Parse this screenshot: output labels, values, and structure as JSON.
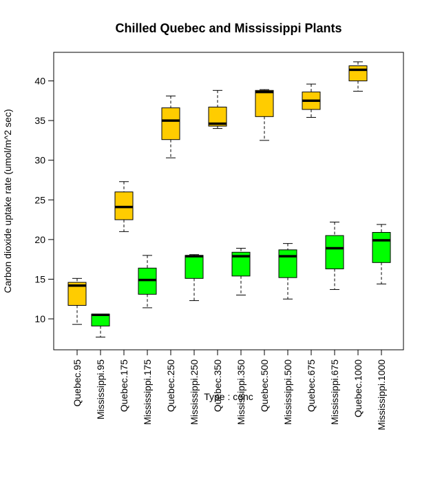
{
  "chart_data": {
    "type": "boxplot",
    "title": "Chilled Quebec and Mississippi Plants",
    "xlabel": "Type : conc",
    "ylabel": "Carbon dioxide uptake rate (umol/m^2 sec)",
    "ylim": [
      6.1,
      43.6
    ],
    "yticks": [
      10,
      15,
      20,
      25,
      30,
      35,
      40
    ],
    "grid": false,
    "legend": "none",
    "colors": {
      "Quebec": "#FFCC00",
      "Mississippi": "#00FF00"
    },
    "categories": [
      "Quebec.95",
      "Mississippi.95",
      "Quebec.175",
      "Mississippi.175",
      "Quebec.250",
      "Mississippi.250",
      "Quebec.350",
      "Mississippi.350",
      "Quebec.500",
      "Mississippi.500",
      "Quebec.675",
      "Mississippi.675",
      "Quebec.1000",
      "Mississippi.1000"
    ],
    "boxes": [
      {
        "group": "Quebec",
        "min": 9.3,
        "q1": 11.7,
        "median": 14.2,
        "q3": 14.6,
        "max": 15.1
      },
      {
        "group": "Mississippi",
        "min": 7.7,
        "q1": 9.1,
        "median": 10.5,
        "q3": 10.6,
        "max": 10.6
      },
      {
        "group": "Quebec",
        "min": 21.0,
        "q1": 22.5,
        "median": 24.1,
        "q3": 26.0,
        "max": 27.3
      },
      {
        "group": "Mississippi",
        "min": 11.4,
        "q1": 13.1,
        "median": 14.9,
        "q3": 16.4,
        "max": 18.0
      },
      {
        "group": "Quebec",
        "min": 30.3,
        "q1": 32.6,
        "median": 35.0,
        "q3": 36.6,
        "max": 38.1
      },
      {
        "group": "Mississippi",
        "min": 12.3,
        "q1": 15.1,
        "median": 17.9,
        "q3": 18.0,
        "max": 18.1
      },
      {
        "group": "Quebec",
        "min": 34.0,
        "q1": 34.3,
        "median": 34.6,
        "q3": 36.7,
        "max": 38.8
      },
      {
        "group": "Mississippi",
        "min": 13.0,
        "q1": 15.4,
        "median": 17.9,
        "q3": 18.4,
        "max": 18.9
      },
      {
        "group": "Quebec",
        "min": 32.5,
        "q1": 35.5,
        "median": 38.6,
        "q3": 38.8,
        "max": 38.9
      },
      {
        "group": "Mississippi",
        "min": 12.5,
        "q1": 15.2,
        "median": 17.9,
        "q3": 18.7,
        "max": 19.5
      },
      {
        "group": "Quebec",
        "min": 35.4,
        "q1": 36.4,
        "median": 37.5,
        "q3": 38.6,
        "max": 39.6
      },
      {
        "group": "Mississippi",
        "min": 13.7,
        "q1": 16.3,
        "median": 18.9,
        "q3": 20.5,
        "max": 22.2
      },
      {
        "group": "Quebec",
        "min": 38.7,
        "q1": 40.0,
        "median": 41.4,
        "q3": 41.9,
        "max": 42.4
      },
      {
        "group": "Mississippi",
        "min": 14.4,
        "q1": 17.1,
        "median": 19.9,
        "q3": 20.9,
        "max": 21.9
      }
    ]
  }
}
